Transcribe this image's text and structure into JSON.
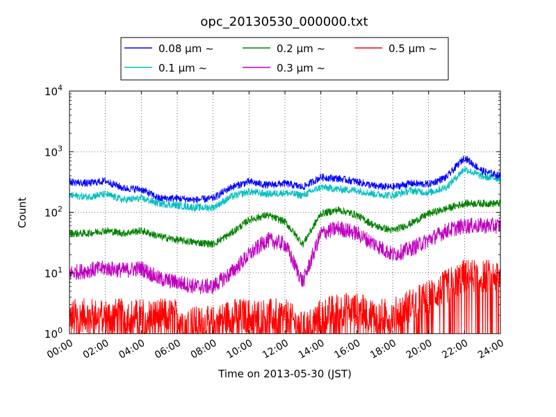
{
  "chart_data": {
    "type": "line",
    "title": "opc_20130530_000000.txt",
    "xlabel": "Time on 2013-05-30 (JST)",
    "ylabel": "Count",
    "yscale": "log",
    "xlim": [
      "00:00",
      "24:00"
    ],
    "ylim": [
      1,
      10000
    ],
    "grid": true,
    "legend_position": "top-center",
    "x_ticks": [
      "00:00",
      "02:00",
      "04:00",
      "06:00",
      "08:00",
      "10:00",
      "12:00",
      "14:00",
      "16:00",
      "18:00",
      "20:00",
      "22:00",
      "24:00"
    ],
    "y_ticks": [
      {
        "base": "10",
        "exp": "0",
        "value": 1
      },
      {
        "base": "10",
        "exp": "1",
        "value": 10
      },
      {
        "base": "10",
        "exp": "2",
        "value": 100
      },
      {
        "base": "10",
        "exp": "3",
        "value": 1000
      },
      {
        "base": "10",
        "exp": "4",
        "value": 10000
      }
    ],
    "series": [
      {
        "name": "0.08 μm ~",
        "color": "#0000ff",
        "x": [
          "00:00",
          "01:00",
          "02:00",
          "03:00",
          "04:00",
          "05:00",
          "06:00",
          "07:00",
          "08:00",
          "09:00",
          "10:00",
          "11:00",
          "12:00",
          "13:00",
          "14:00",
          "15:00",
          "16:00",
          "17:00",
          "18:00",
          "19:00",
          "20:00",
          "21:00",
          "22:00",
          "23:00",
          "24:00"
        ],
        "y": [
          320,
          300,
          330,
          250,
          240,
          170,
          170,
          160,
          170,
          260,
          320,
          280,
          300,
          260,
          380,
          360,
          320,
          270,
          260,
          300,
          290,
          380,
          800,
          480,
          400
        ]
      },
      {
        "name": "0.1 μm ~",
        "color": "#00bfbf",
        "x": [
          "00:00",
          "01:00",
          "02:00",
          "03:00",
          "04:00",
          "05:00",
          "06:00",
          "07:00",
          "08:00",
          "09:00",
          "10:00",
          "11:00",
          "12:00",
          "13:00",
          "14:00",
          "15:00",
          "16:00",
          "17:00",
          "18:00",
          "19:00",
          "20:00",
          "21:00",
          "22:00",
          "23:00",
          "24:00"
        ],
        "y": [
          190,
          180,
          200,
          160,
          170,
          140,
          130,
          120,
          120,
          180,
          220,
          200,
          210,
          190,
          260,
          240,
          230,
          200,
          190,
          230,
          210,
          260,
          520,
          390,
          360
        ]
      },
      {
        "name": "0.2 μm ~",
        "color": "#008000",
        "x": [
          "00:00",
          "01:00",
          "02:00",
          "03:00",
          "04:00",
          "05:00",
          "06:00",
          "07:00",
          "08:00",
          "09:00",
          "10:00",
          "11:00",
          "12:00",
          "13:00",
          "14:00",
          "15:00",
          "16:00",
          "17:00",
          "18:00",
          "19:00",
          "20:00",
          "21:00",
          "22:00",
          "23:00",
          "24:00"
        ],
        "y": [
          45,
          45,
          50,
          45,
          50,
          40,
          35,
          32,
          30,
          45,
          75,
          90,
          70,
          30,
          95,
          110,
          90,
          60,
          50,
          65,
          95,
          115,
          140,
          140,
          140
        ]
      },
      {
        "name": "0.3 μm ~",
        "color": "#bf00bf",
        "x": [
          "00:00",
          "01:00",
          "02:00",
          "03:00",
          "04:00",
          "05:00",
          "06:00",
          "07:00",
          "08:00",
          "09:00",
          "10:00",
          "11:00",
          "12:00",
          "13:00",
          "14:00",
          "15:00",
          "16:00",
          "17:00",
          "18:00",
          "19:00",
          "20:00",
          "21:00",
          "22:00",
          "23:00",
          "24:00"
        ],
        "y": [
          10,
          11,
          12,
          11,
          12,
          8,
          7,
          6,
          6,
          10,
          20,
          35,
          30,
          7,
          45,
          55,
          45,
          30,
          20,
          25,
          35,
          50,
          60,
          60,
          60
        ]
      },
      {
        "name": "0.5 μm ~",
        "color": "#ff0000",
        "x": [
          "00:00",
          "01:00",
          "02:00",
          "03:00",
          "04:00",
          "05:00",
          "06:00",
          "07:00",
          "08:00",
          "09:00",
          "10:00",
          "11:00",
          "12:00",
          "13:00",
          "14:00",
          "15:00",
          "16:00",
          "17:00",
          "18:00",
          "19:00",
          "20:00",
          "21:00",
          "22:00",
          "23:00",
          "24:00"
        ],
        "y": [
          2,
          2,
          2,
          2,
          2,
          2,
          2,
          1.5,
          1.5,
          2,
          2,
          2,
          2,
          1.2,
          2,
          2.5,
          2.5,
          2,
          2,
          3,
          4,
          6,
          9,
          9,
          9
        ]
      }
    ]
  }
}
